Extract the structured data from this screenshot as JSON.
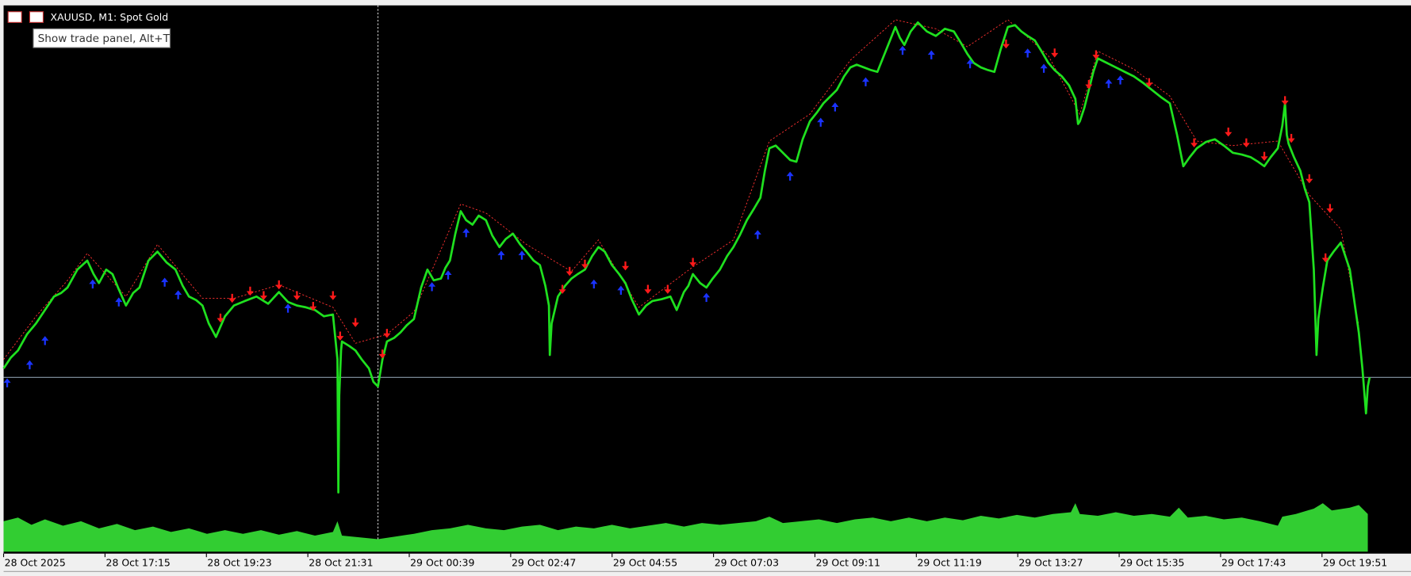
{
  "window": {
    "title": "XAUUSD, M1:  Spot Gold",
    "tooltip": "Show trade panel, Alt+T",
    "time_labels": [
      "28 Oct 2025",
      "28 Oct 17:15",
      "28 Oct 19:23",
      "28 Oct 21:31",
      "29 Oct 00:39",
      "29 Oct 02:47",
      "29 Oct 04:55",
      "29 Oct 07:03",
      "29 Oct 09:11",
      "29 Oct 11:19",
      "29 Oct 13:27",
      "29 Oct 15:35",
      "29 Oct 17:43",
      "29 Oct 19:51"
    ]
  }
}
